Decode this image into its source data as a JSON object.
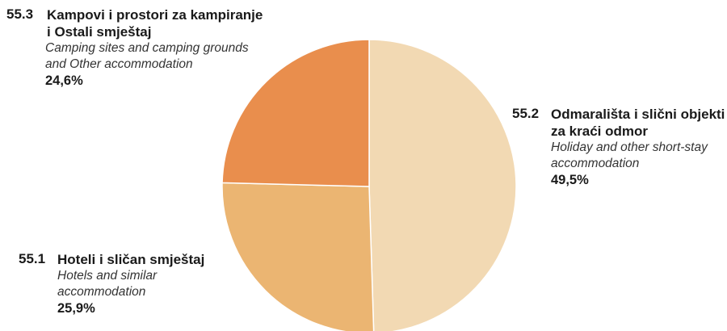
{
  "chart_data": {
    "type": "pie",
    "slices": [
      {
        "code": "55.2",
        "label_hr": "Odmarališta i slični objekti",
        "label_hr_2": "za kraći odmor",
        "label_en": "Holiday and other short-stay",
        "label_en_2": "accommodation",
        "value": 49.5,
        "value_label": "49,5%",
        "color": "#F2D9B3"
      },
      {
        "code": "55.1",
        "label_hr": "Hoteli i sličan smještaj",
        "label_en": "Hotels and similar",
        "label_en_2": "accommodation",
        "value": 25.9,
        "value_label": "25,9%",
        "color": "#EBB572"
      },
      {
        "code": "55.3",
        "label_hr": "Kampovi i prostori za kampiranje",
        "label_hr_2": "i  Ostali smještaj",
        "label_en": "Camping sites and camping grounds",
        "label_en_2": "and  Other accommodation",
        "value": 24.6,
        "value_label": "24,6%",
        "color": "#E98E4D"
      }
    ]
  }
}
